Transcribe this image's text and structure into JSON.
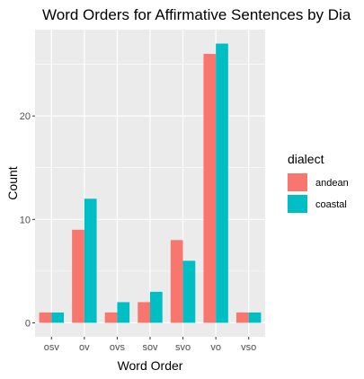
{
  "chart_data": {
    "type": "bar",
    "title": "Word Orders for Affirmative Sentences by Dia",
    "xlabel": "Word Order",
    "ylabel": "Count",
    "categories": [
      "osv",
      "ov",
      "ovs",
      "sov",
      "svo",
      "vo",
      "vso"
    ],
    "series": [
      {
        "name": "andean",
        "values": [
          1,
          9,
          1,
          2,
          8,
          26,
          1
        ],
        "color": "#F8766D"
      },
      {
        "name": "coastal",
        "values": [
          1,
          12,
          2,
          3,
          6,
          27,
          1
        ],
        "color": "#00BFC4"
      }
    ],
    "ylim": [
      -1.35,
      28.35
    ],
    "yticks": [
      0,
      10,
      20
    ],
    "grid": true,
    "legend": {
      "title": "dialect",
      "placement": "right"
    },
    "panel_color": "#EBEBEB",
    "grid_color": "#FFFFFF"
  }
}
